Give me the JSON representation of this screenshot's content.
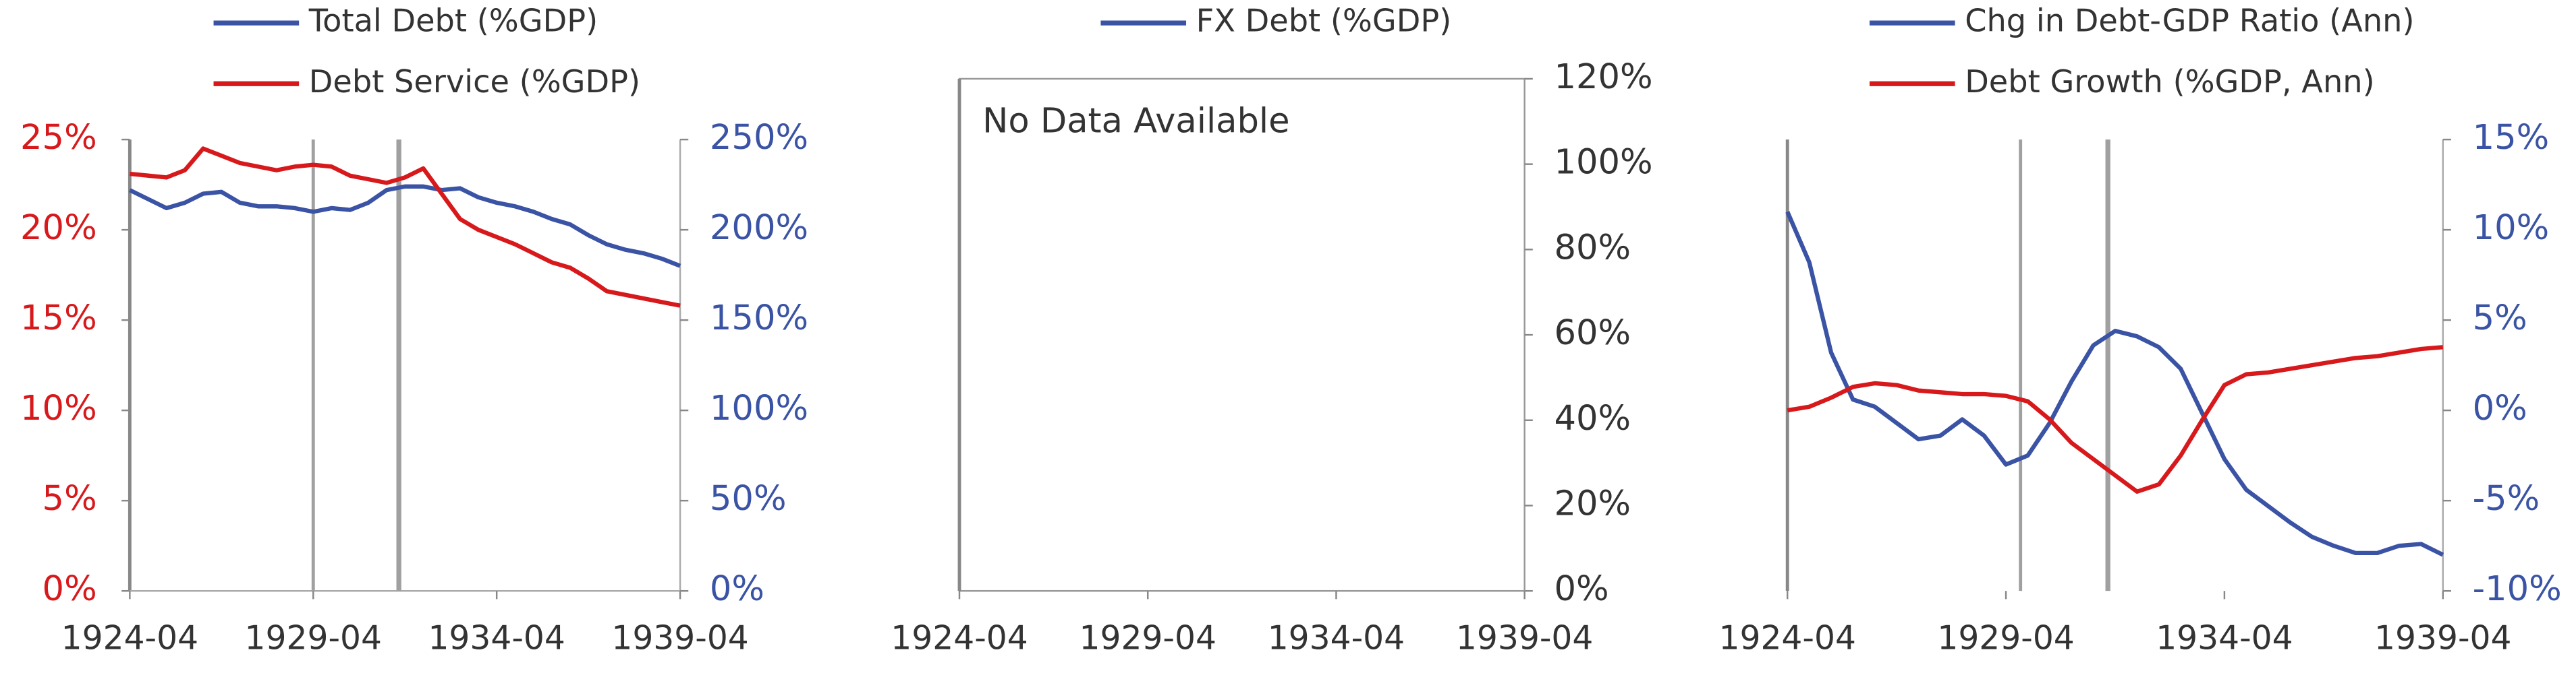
{
  "chart_data": [
    {
      "type": "line",
      "x": [
        "1924-04",
        "1924-10",
        "1925-04",
        "1925-10",
        "1926-04",
        "1926-10",
        "1927-04",
        "1927-10",
        "1928-04",
        "1928-10",
        "1929-04",
        "1929-10",
        "1930-04",
        "1930-10",
        "1931-04",
        "1931-10",
        "1932-04",
        "1932-10",
        "1933-04",
        "1933-10",
        "1934-04",
        "1934-10",
        "1935-04",
        "1935-10",
        "1936-04",
        "1936-10",
        "1937-04",
        "1937-10",
        "1938-04",
        "1938-10",
        "1939-04"
      ],
      "series": [
        {
          "name": "Total Debt (%GDP)",
          "color": "#3a53a4",
          "axis": "y2",
          "values": [
            222,
            217,
            212,
            215,
            220,
            221,
            215,
            213,
            213,
            212,
            210,
            212,
            211,
            215,
            222,
            224,
            224,
            222,
            223,
            218,
            215,
            213,
            210,
            206,
            203,
            197,
            192,
            189,
            187,
            184,
            180
          ]
        },
        {
          "name": "Debt Service (%GDP)",
          "color": "#d7191c",
          "axis": "y",
          "values": [
            23.1,
            23.0,
            22.9,
            23.3,
            24.5,
            24.1,
            23.7,
            23.5,
            23.3,
            23.5,
            23.6,
            23.5,
            23.0,
            22.8,
            22.6,
            22.9,
            23.4,
            22.0,
            20.6,
            20.0,
            19.6,
            19.2,
            18.7,
            18.2,
            17.9,
            17.3,
            16.6,
            16.4,
            16.2,
            16.0,
            15.8
          ]
        }
      ],
      "xlim": [
        "1924-04",
        "1939-04"
      ],
      "xticks": [
        "1924-04",
        "1929-04",
        "1934-04",
        "1939-04"
      ],
      "ylim": [
        0,
        25
      ],
      "yticks": [
        {
          "value": 0,
          "label": "0%"
        },
        {
          "value": 5,
          "label": "5%"
        },
        {
          "value": 10,
          "label": "10%"
        },
        {
          "value": 15,
          "label": "15%"
        },
        {
          "value": 20,
          "label": "20%"
        },
        {
          "value": 25,
          "label": "25%"
        }
      ],
      "y2lim": [
        0,
        250
      ],
      "y2ticks": [
        {
          "value": 0,
          "label": "0%"
        },
        {
          "value": 50,
          "label": "50%"
        },
        {
          "value": 100,
          "label": "100%"
        },
        {
          "value": 150,
          "label": "150%"
        },
        {
          "value": 200,
          "label": "200%"
        },
        {
          "value": 250,
          "label": "250%"
        }
      ],
      "markers": [
        "1929-04",
        "1931-08"
      ]
    },
    {
      "type": "line",
      "x": [],
      "series": [
        {
          "name": "FX Debt (%GDP)",
          "color": "#3a53a4",
          "axis": "y2",
          "values": []
        }
      ],
      "annotation": "No Data Available",
      "xlim": [
        "1924-04",
        "1939-04"
      ],
      "xticks": [
        "1924-04",
        "1929-04",
        "1934-04",
        "1939-04"
      ],
      "y2lim": [
        0,
        120
      ],
      "y2ticks": [
        {
          "value": 0,
          "label": "0%"
        },
        {
          "value": 20,
          "label": "20%"
        },
        {
          "value": 40,
          "label": "40%"
        },
        {
          "value": 60,
          "label": "60%"
        },
        {
          "value": 80,
          "label": "80%"
        },
        {
          "value": 100,
          "label": "100%"
        },
        {
          "value": 120,
          "label": "120%"
        }
      ]
    },
    {
      "type": "line",
      "x": [
        "1924-04",
        "1924-10",
        "1925-04",
        "1925-10",
        "1926-04",
        "1926-10",
        "1927-04",
        "1927-10",
        "1928-04",
        "1928-10",
        "1929-04",
        "1929-10",
        "1930-04",
        "1930-10",
        "1931-04",
        "1931-10",
        "1932-04",
        "1932-10",
        "1933-04",
        "1933-10",
        "1934-04",
        "1934-10",
        "1935-04",
        "1935-10",
        "1936-04",
        "1936-10",
        "1937-04",
        "1937-10",
        "1938-04",
        "1938-10",
        "1939-04"
      ],
      "series": [
        {
          "name": "Chg in Debt-GDP Ratio (Ann)",
          "color": "#3a53a4",
          "axis": "y2",
          "values": [
            11,
            8.2,
            3.2,
            0.6,
            0.2,
            -0.7,
            -1.6,
            -1.4,
            -0.5,
            -1.4,
            -3,
            -2.5,
            -0.7,
            1.6,
            3.6,
            4.4,
            4.1,
            3.5,
            2.3,
            -0.2,
            -2.7,
            -4.4,
            -5.3,
            -6.2,
            -7,
            -7.5,
            -7.9,
            -7.9,
            -7.5,
            -7.4,
            -8
          ]
        },
        {
          "name": "Debt Growth (%GDP, Ann)",
          "color": "#d7191c",
          "axis": "y2",
          "values": [
            0,
            0.2,
            0.7,
            1.3,
            1.5,
            1.4,
            1.1,
            1.0,
            0.9,
            0.9,
            0.8,
            0.5,
            -0.5,
            -1.8,
            -2.7,
            -3.6,
            -4.5,
            -4.1,
            -2.5,
            -0.5,
            1.4,
            2,
            2.1,
            2.3,
            2.5,
            2.7,
            2.9,
            3.0,
            3.2,
            3.4,
            3.5
          ]
        }
      ],
      "xlim": [
        "1924-04",
        "1939-04"
      ],
      "xticks": [
        "1924-04",
        "1929-04",
        "1934-04",
        "1939-04"
      ],
      "y2lim": [
        -10,
        15
      ],
      "y2ticks": [
        {
          "value": -10,
          "label": "-10%"
        },
        {
          "value": -5,
          "label": "-5%"
        },
        {
          "value": 0,
          "label": "0%"
        },
        {
          "value": 5,
          "label": "5%"
        },
        {
          "value": 10,
          "label": "10%"
        },
        {
          "value": 15,
          "label": "15%"
        }
      ],
      "markers": [
        "1929-08",
        "1931-08"
      ]
    }
  ]
}
